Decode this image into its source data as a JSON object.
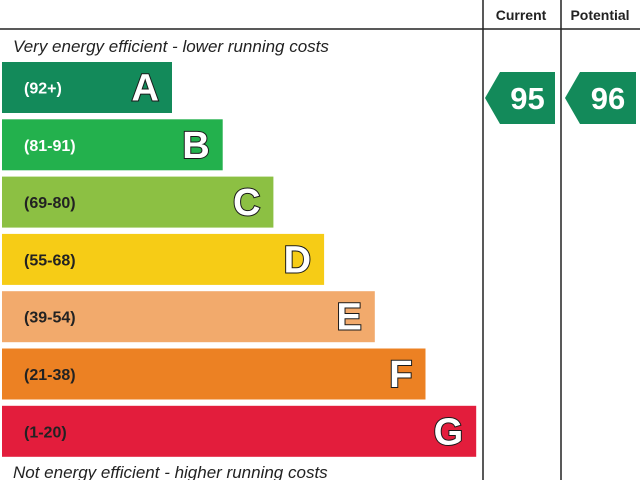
{
  "headers": {
    "current": "Current",
    "potential": "Potential"
  },
  "captions": {
    "top": "Very energy efficient - lower running costs",
    "bottom": "Not energy efficient - higher running costs"
  },
  "chart_data": {
    "type": "bar",
    "categories": [
      "A",
      "B",
      "C",
      "D",
      "E",
      "F",
      "G"
    ],
    "bands": [
      {
        "letter": "A",
        "range": "(92+)",
        "min": 92,
        "max": 100,
        "color": "#138a5a",
        "text_color": "#ffffff"
      },
      {
        "letter": "B",
        "range": "(81-91)",
        "min": 81,
        "max": 91,
        "color": "#23b14d",
        "text_color": "#ffffff"
      },
      {
        "letter": "C",
        "range": "(69-80)",
        "min": 69,
        "max": 80,
        "color": "#8cc043",
        "text_color": "#222222"
      },
      {
        "letter": "D",
        "range": "(55-68)",
        "min": 55,
        "max": 68,
        "color": "#f6cc16",
        "text_color": "#222222"
      },
      {
        "letter": "E",
        "range": "(39-54)",
        "min": 39,
        "max": 54,
        "color": "#f2aa6c",
        "text_color": "#222222"
      },
      {
        "letter": "F",
        "range": "(21-38)",
        "min": 21,
        "max": 38,
        "color": "#ec8123",
        "text_color": "#222222"
      },
      {
        "letter": "G",
        "range": "(1-20)",
        "min": 1,
        "max": 20,
        "color": "#e31d3c",
        "text_color": "#222222"
      }
    ],
    "ratings": {
      "current": {
        "value": 95,
        "band": "A",
        "color": "#138a5a"
      },
      "potential": {
        "value": 96,
        "band": "A",
        "color": "#138a5a"
      }
    }
  }
}
